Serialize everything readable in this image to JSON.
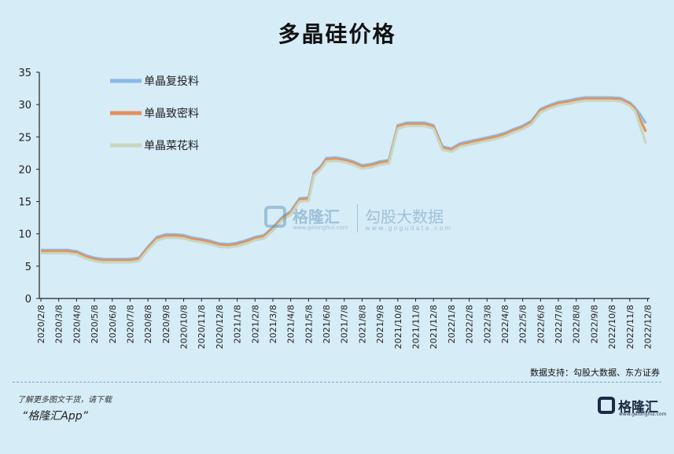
{
  "chart_data": {
    "type": "line",
    "title": "多晶硅价格",
    "ylim": [
      0,
      35
    ],
    "yticks": [
      0,
      5,
      10,
      15,
      20,
      25,
      30,
      35
    ],
    "x_labels": [
      "2020/2/8",
      "2020/3/8",
      "2020/4/8",
      "2020/5/8",
      "2020/6/8",
      "2020/7/8",
      "2020/8/8",
      "2020/9/8",
      "2020/10/8",
      "2020/11/8",
      "2020/12/8",
      "2021/1/8",
      "2021/2/8",
      "2021/3/8",
      "2021/4/8",
      "2021/5/8",
      "2021/6/8",
      "2021/7/8",
      "2021/8/8",
      "2021/9/8",
      "2021/10/8",
      "2021/11/8",
      "2021/12/8",
      "2022/1/8",
      "2022/2/8",
      "2022/3/8",
      "2022/4/8",
      "2022/5/8",
      "2022/6/8",
      "2022/7/8",
      "2022/8/8",
      "2022/9/8",
      "2022/10/8",
      "2022/11/8",
      "2022/12/8"
    ],
    "legend_position": "top-left",
    "grid": false,
    "series": [
      {
        "name": "单晶复投料",
        "color": "#8ab8e8",
        "values": [
          [
            0,
            7.5
          ],
          [
            0.5,
            7.5
          ],
          [
            1,
            7.5
          ],
          [
            1.5,
            7.5
          ],
          [
            2,
            7.3
          ],
          [
            2.5,
            6.7
          ],
          [
            3,
            6.3
          ],
          [
            3.2,
            6.2
          ],
          [
            3.5,
            6.1
          ],
          [
            4,
            6.1
          ],
          [
            4.5,
            6.1
          ],
          [
            5,
            6.1
          ],
          [
            5.5,
            6.3
          ],
          [
            6,
            8.0
          ],
          [
            6.5,
            9.5
          ],
          [
            7,
            9.9
          ],
          [
            7.5,
            9.9
          ],
          [
            8,
            9.8
          ],
          [
            8.5,
            9.4
          ],
          [
            9,
            9.2
          ],
          [
            9.5,
            8.9
          ],
          [
            10,
            8.5
          ],
          [
            10.5,
            8.4
          ],
          [
            11,
            8.6
          ],
          [
            11.5,
            9.0
          ],
          [
            12,
            9.5
          ],
          [
            12.5,
            9.8
          ],
          [
            13,
            11.0
          ],
          [
            13.5,
            12.5
          ],
          [
            14,
            13.5
          ],
          [
            14.5,
            15.5
          ],
          [
            15,
            15.6
          ],
          [
            15.3,
            19.5
          ],
          [
            15.7,
            20.5
          ],
          [
            16,
            21.7
          ],
          [
            16.5,
            21.8
          ],
          [
            17,
            21.6
          ],
          [
            17.5,
            21.2
          ],
          [
            18,
            20.6
          ],
          [
            18.5,
            20.8
          ],
          [
            19,
            21.2
          ],
          [
            19.5,
            21.4
          ],
          [
            20,
            26.8
          ],
          [
            20.5,
            27.2
          ],
          [
            21,
            27.2
          ],
          [
            21.5,
            27.2
          ],
          [
            22,
            26.8
          ],
          [
            22.5,
            23.5
          ],
          [
            23,
            23.2
          ],
          [
            23.5,
            24.0
          ],
          [
            24,
            24.3
          ],
          [
            24.5,
            24.6
          ],
          [
            25,
            24.9
          ],
          [
            25.5,
            25.2
          ],
          [
            26,
            25.6
          ],
          [
            26.5,
            26.2
          ],
          [
            27,
            26.7
          ],
          [
            27.5,
            27.5
          ],
          [
            28,
            29.3
          ],
          [
            28.5,
            29.9
          ],
          [
            29,
            30.4
          ],
          [
            29.5,
            30.6
          ],
          [
            30,
            30.9
          ],
          [
            30.5,
            31.1
          ],
          [
            31,
            31.1
          ],
          [
            31.5,
            31.1
          ],
          [
            32,
            31.1
          ],
          [
            32.5,
            31.0
          ],
          [
            33,
            30.3
          ],
          [
            33.3,
            29.5
          ],
          [
            33.6,
            28.4
          ],
          [
            33.9,
            27.1
          ]
        ]
      },
      {
        "name": "单晶致密料",
        "color": "#e4915a",
        "values": [
          [
            0,
            7.3
          ],
          [
            0.5,
            7.3
          ],
          [
            1,
            7.3
          ],
          [
            1.5,
            7.3
          ],
          [
            2,
            7.1
          ],
          [
            2.5,
            6.5
          ],
          [
            3,
            6.1
          ],
          [
            3.2,
            6.0
          ],
          [
            3.5,
            5.9
          ],
          [
            4,
            5.9
          ],
          [
            4.5,
            5.9
          ],
          [
            5,
            5.9
          ],
          [
            5.5,
            6.1
          ],
          [
            6,
            7.8
          ],
          [
            6.5,
            9.3
          ],
          [
            7,
            9.7
          ],
          [
            7.5,
            9.7
          ],
          [
            8,
            9.6
          ],
          [
            8.5,
            9.2
          ],
          [
            9,
            9.0
          ],
          [
            9.5,
            8.7
          ],
          [
            10,
            8.3
          ],
          [
            10.5,
            8.2
          ],
          [
            11,
            8.4
          ],
          [
            11.5,
            8.8
          ],
          [
            12,
            9.3
          ],
          [
            12.5,
            9.6
          ],
          [
            13,
            10.8
          ],
          [
            13.5,
            12.3
          ],
          [
            14,
            13.3
          ],
          [
            14.5,
            15.3
          ],
          [
            15,
            15.4
          ],
          [
            15.3,
            19.3
          ],
          [
            15.7,
            20.3
          ],
          [
            16,
            21.5
          ],
          [
            16.5,
            21.6
          ],
          [
            17,
            21.4
          ],
          [
            17.5,
            21.0
          ],
          [
            18,
            20.4
          ],
          [
            18.5,
            20.6
          ],
          [
            19,
            21.0
          ],
          [
            19.5,
            21.2
          ],
          [
            20,
            26.6
          ],
          [
            20.5,
            27.0
          ],
          [
            21,
            27.0
          ],
          [
            21.5,
            27.0
          ],
          [
            22,
            26.6
          ],
          [
            22.5,
            23.3
          ],
          [
            23,
            23.0
          ],
          [
            23.5,
            23.8
          ],
          [
            24,
            24.1
          ],
          [
            24.5,
            24.4
          ],
          [
            25,
            24.7
          ],
          [
            25.5,
            25.0
          ],
          [
            26,
            25.4
          ],
          [
            26.5,
            26.0
          ],
          [
            27,
            26.5
          ],
          [
            27.5,
            27.3
          ],
          [
            28,
            29.1
          ],
          [
            28.5,
            29.7
          ],
          [
            29,
            30.2
          ],
          [
            29.5,
            30.4
          ],
          [
            30,
            30.7
          ],
          [
            30.5,
            30.9
          ],
          [
            31,
            30.9
          ],
          [
            31.5,
            30.9
          ],
          [
            32,
            30.9
          ],
          [
            32.5,
            30.8
          ],
          [
            33,
            30.1
          ],
          [
            33.3,
            29.3
          ],
          [
            33.6,
            27.6
          ],
          [
            33.9,
            25.8
          ]
        ]
      },
      {
        "name": "单晶菜花料",
        "color": "#c9d6bf",
        "values": [
          [
            0,
            7.0
          ],
          [
            0.5,
            7.0
          ],
          [
            1,
            7.0
          ],
          [
            1.5,
            7.0
          ],
          [
            2,
            6.8
          ],
          [
            2.5,
            6.2
          ],
          [
            3,
            5.8
          ],
          [
            3.2,
            5.7
          ],
          [
            3.5,
            5.6
          ],
          [
            4,
            5.6
          ],
          [
            4.5,
            5.6
          ],
          [
            5,
            5.6
          ],
          [
            5.5,
            5.8
          ],
          [
            6,
            7.5
          ],
          [
            6.5,
            9.0
          ],
          [
            7,
            9.4
          ],
          [
            7.5,
            9.4
          ],
          [
            8,
            9.3
          ],
          [
            8.5,
            8.9
          ],
          [
            9,
            8.7
          ],
          [
            9.5,
            8.4
          ],
          [
            10,
            8.0
          ],
          [
            10.5,
            7.9
          ],
          [
            11,
            8.1
          ],
          [
            11.5,
            8.5
          ],
          [
            12,
            9.0
          ],
          [
            12.5,
            9.3
          ],
          [
            13,
            10.5
          ],
          [
            13.5,
            12.0
          ],
          [
            14,
            13.0
          ],
          [
            14.5,
            15.0
          ],
          [
            15,
            15.1
          ],
          [
            15.3,
            19.0
          ],
          [
            15.7,
            20.0
          ],
          [
            16,
            21.2
          ],
          [
            16.5,
            21.3
          ],
          [
            17,
            21.1
          ],
          [
            17.5,
            20.7
          ],
          [
            18,
            20.1
          ],
          [
            18.5,
            20.3
          ],
          [
            19,
            20.7
          ],
          [
            19.5,
            20.9
          ],
          [
            20,
            26.3
          ],
          [
            20.5,
            26.7
          ],
          [
            21,
            26.7
          ],
          [
            21.5,
            26.7
          ],
          [
            22,
            26.3
          ],
          [
            22.5,
            23.0
          ],
          [
            23,
            22.7
          ],
          [
            23.5,
            23.5
          ],
          [
            24,
            23.8
          ],
          [
            24.5,
            24.1
          ],
          [
            25,
            24.4
          ],
          [
            25.5,
            24.7
          ],
          [
            26,
            25.1
          ],
          [
            26.5,
            25.7
          ],
          [
            27,
            26.2
          ],
          [
            27.5,
            27.0
          ],
          [
            28,
            28.8
          ],
          [
            28.5,
            29.4
          ],
          [
            29,
            29.9
          ],
          [
            29.5,
            30.1
          ],
          [
            30,
            30.4
          ],
          [
            30.5,
            30.6
          ],
          [
            31,
            30.6
          ],
          [
            31.5,
            30.6
          ],
          [
            32,
            30.6
          ],
          [
            32.5,
            30.5
          ],
          [
            33,
            29.8
          ],
          [
            33.3,
            29.0
          ],
          [
            33.6,
            26.5
          ],
          [
            33.9,
            24.0
          ]
        ]
      }
    ]
  },
  "footer": {
    "source": "数据支持：勾股大数据、东方证券",
    "promo": "了解更多图文干货，请下载",
    "app_name": "“格隆汇App”"
  },
  "watermark": {
    "brand": "格隆汇",
    "brand_url": "www.gelonghui.com",
    "data_brand": "勾股大数据",
    "data_url": "www.gogudata.com"
  },
  "corner_logo": {
    "text": "格隆汇",
    "url": "www.gelonghui.com"
  }
}
